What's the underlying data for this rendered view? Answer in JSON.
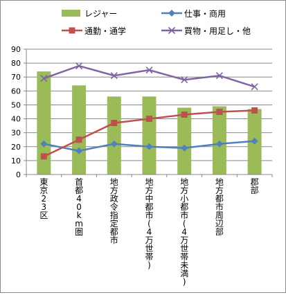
{
  "chart_data": {
    "type": "bar",
    "categories": [
      "東京23区",
      "首都40km圏",
      "地方政令指定都市",
      "地方中都市(4万世帯)",
      "地方小都市(4万世帯未満)",
      "地方都市周辺部",
      "郡部"
    ],
    "ylim": [
      0,
      90
    ],
    "yticks": [
      0,
      10,
      20,
      30,
      40,
      50,
      60,
      70,
      80,
      90
    ],
    "grid": true,
    "legend_position": "top",
    "series": [
      {
        "name": "レジャー",
        "kind": "bar",
        "color": "#9bbb59",
        "values": [
          74,
          64,
          56,
          56,
          48,
          49,
          47
        ]
      },
      {
        "name": "仕事・商用",
        "kind": "line",
        "marker": "diamond",
        "color": "#4f81bd",
        "values": [
          22,
          17,
          22,
          20,
          19,
          22,
          24
        ]
      },
      {
        "name": "通勤・通学",
        "kind": "line",
        "marker": "square",
        "color": "#c0504d",
        "values": [
          13,
          25,
          37,
          40,
          43,
          45,
          46
        ]
      },
      {
        "name": "買物・用足し・他",
        "kind": "line",
        "marker": "x",
        "color": "#8064a2",
        "values": [
          69,
          78,
          71,
          75,
          68,
          71,
          63
        ]
      }
    ]
  }
}
